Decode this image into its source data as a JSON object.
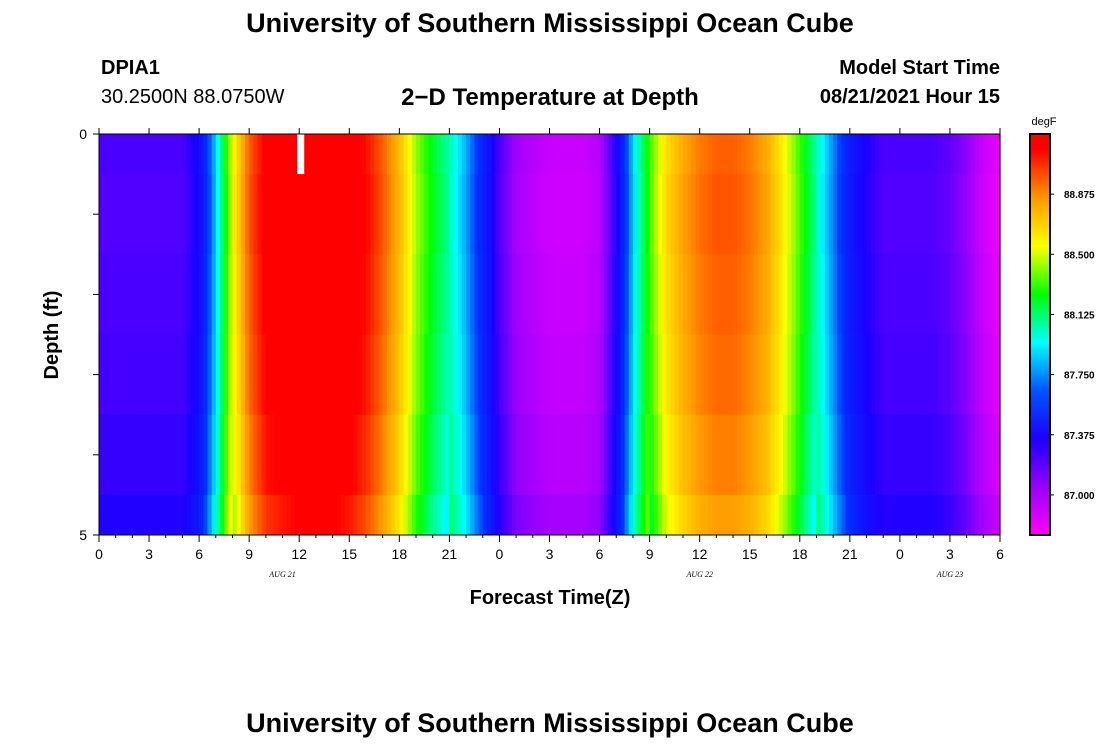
{
  "header": {
    "title": "University of Southern Mississippi Ocean Cube",
    "station": "DPIA1",
    "coords": "30.2500N  88.0750W",
    "subtitle": "2−D Temperature at Depth",
    "model_label": "Model Start Time",
    "model_time": "08/21/2021 Hour 15"
  },
  "footer": {
    "title": "University of Southern Mississippi Ocean Cube"
  },
  "chart_data": {
    "type": "heatmap",
    "xlabel": "Forecast Time(Z)",
    "ylabel": "Depth (ft)",
    "x_hours": [
      0,
      54
    ],
    "x_tick_labels": [
      "0",
      "3",
      "6",
      "9",
      "12",
      "15",
      "18",
      "21",
      "0",
      "3",
      "6",
      "9",
      "12",
      "15",
      "18",
      "21",
      "0",
      "3",
      "6"
    ],
    "x_tick_hours": [
      0,
      3,
      6,
      9,
      12,
      15,
      18,
      21,
      24,
      27,
      30,
      33,
      36,
      39,
      42,
      45,
      48,
      51,
      54
    ],
    "date_labels": [
      {
        "text": "AUG  21",
        "hour": 11
      },
      {
        "text": "AUG  22",
        "hour": 36
      },
      {
        "text": "AUG  23",
        "hour": 51
      }
    ],
    "y_tick_labels": [
      "0",
      "5"
    ],
    "ylim": [
      0,
      5
    ],
    "colorbar": {
      "unit": "degF",
      "labels": [
        "88.875",
        "88.500",
        "88.125",
        "87.750",
        "87.375",
        "87.000"
      ],
      "values": [
        88.875,
        88.5,
        88.125,
        87.75,
        87.375,
        87.0
      ],
      "range": [
        86.75,
        89.25
      ],
      "colors": [
        "#ff00ff",
        "#9900ff",
        "#1a00ff",
        "#0033ff",
        "#00ffff",
        "#00ff00",
        "#ffff00",
        "#ff9900",
        "#ff0000",
        "#ff0000"
      ]
    },
    "x_hours_grid": [
      0,
      1,
      2,
      3,
      4,
      5,
      6,
      7,
      8,
      9,
      10,
      11,
      12,
      13,
      14,
      15,
      16,
      17,
      18,
      19,
      20,
      21,
      22,
      23,
      24,
      25,
      26,
      27,
      28,
      29,
      30,
      31,
      32,
      33,
      34,
      35,
      36,
      37,
      38,
      39,
      40,
      41,
      42,
      43,
      44,
      45,
      46,
      47,
      48,
      49,
      50,
      51,
      52,
      53,
      54
    ],
    "depth_levels_ft": [
      0.25,
      0.75,
      1.75,
      2.75,
      3.75,
      4.5
    ],
    "temperature_profile_surface": [
      87.2,
      87.2,
      87.2,
      87.2,
      87.2,
      87.2,
      87.35,
      87.8,
      88.4,
      88.8,
      89.0,
      89.05,
      89.1,
      89.1,
      89.1,
      89.05,
      88.95,
      88.8,
      88.6,
      88.3,
      88.1,
      87.95,
      87.75,
      87.5,
      87.2,
      87.0,
      86.95,
      86.9,
      86.9,
      86.9,
      86.95,
      87.3,
      87.8,
      88.2,
      88.5,
      88.65,
      88.75,
      88.8,
      88.8,
      88.75,
      88.65,
      88.45,
      88.2,
      87.95,
      87.7,
      87.45,
      87.3,
      87.2,
      87.2,
      87.2,
      87.2,
      87.15,
      87.05,
      86.9,
      86.8
    ],
    "depth_offsets": [
      0.0,
      -0.05,
      0.0,
      0.05,
      0.15,
      0.3
    ]
  }
}
